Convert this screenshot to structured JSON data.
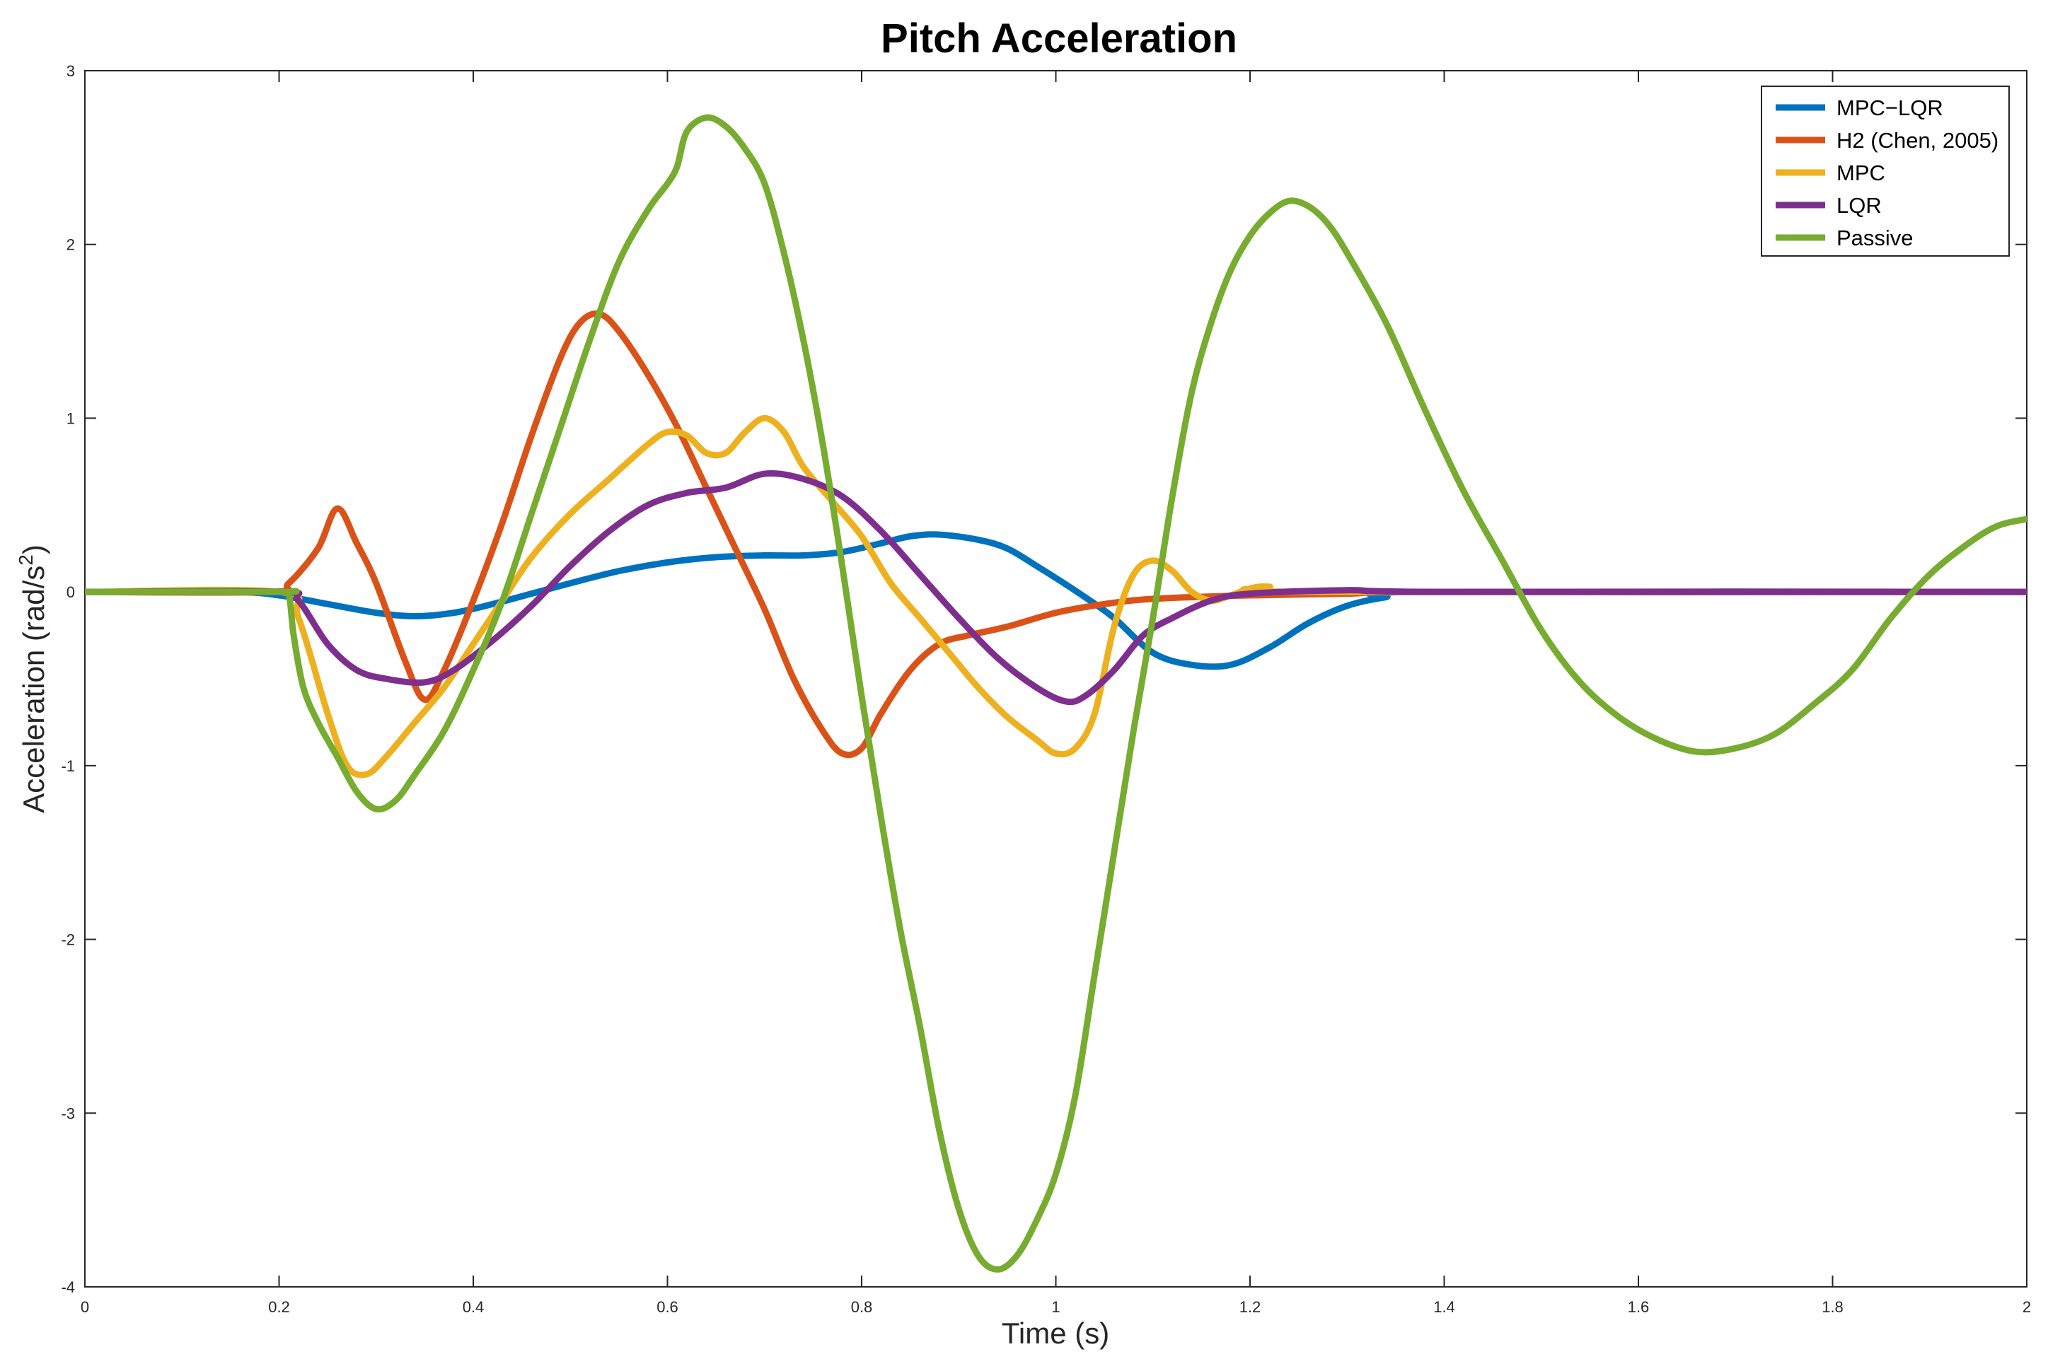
{
  "chart_data": {
    "type": "line",
    "title": "Pitch Acceleration",
    "xlabel": "Time (s)",
    "ylabel_main": "Acceleration (rad/s",
    "ylabel_sup": "2",
    "ylabel_close": ")",
    "xlim": [
      0,
      2
    ],
    "ylim": [
      -4,
      3
    ],
    "xticks": [
      0,
      0.2,
      0.4,
      0.6,
      0.8,
      1,
      1.2,
      1.4,
      1.6,
      1.8,
      2
    ],
    "xtick_labels": [
      "0",
      "0.2",
      "0.4",
      "0.6",
      "0.8",
      "1",
      "1.2",
      "1.4",
      "1.6",
      "1.8",
      "2"
    ],
    "yticks": [
      -4,
      -3,
      -2,
      -1,
      0,
      1,
      2,
      3
    ],
    "ytick_labels": [
      "-4",
      "-3",
      "-2",
      "-1",
      "0",
      "1",
      "2",
      "3"
    ],
    "grid": false,
    "legend_position": "top-right",
    "series": [
      {
        "name": "MPC−LQR",
        "color": "#0072BD",
        "points": [
          [
            0,
            0
          ],
          [
            0.15,
            0
          ],
          [
            0.2,
            -0.02
          ],
          [
            0.25,
            -0.07
          ],
          [
            0.3,
            -0.12
          ],
          [
            0.34,
            -0.14
          ],
          [
            0.38,
            -0.12
          ],
          [
            0.42,
            -0.07
          ],
          [
            0.46,
            -0.01
          ],
          [
            0.5,
            0.05
          ],
          [
            0.55,
            0.12
          ],
          [
            0.6,
            0.17
          ],
          [
            0.65,
            0.2
          ],
          [
            0.7,
            0.21
          ],
          [
            0.74,
            0.21
          ],
          [
            0.78,
            0.23
          ],
          [
            0.82,
            0.28
          ],
          [
            0.85,
            0.32
          ],
          [
            0.88,
            0.33
          ],
          [
            0.92,
            0.3
          ],
          [
            0.95,
            0.25
          ],
          [
            0.98,
            0.15
          ],
          [
            1.0,
            0.08
          ],
          [
            1.03,
            -0.03
          ],
          [
            1.06,
            -0.15
          ],
          [
            1.1,
            -0.35
          ],
          [
            1.14,
            -0.42
          ],
          [
            1.18,
            -0.42
          ],
          [
            1.22,
            -0.32
          ],
          [
            1.26,
            -0.18
          ],
          [
            1.3,
            -0.08
          ],
          [
            1.34,
            -0.03
          ],
          [
            1.38,
            0
          ],
          [
            2,
            0
          ]
        ]
      },
      {
        "name": "H2 (Chen, 2005)",
        "color": "#D95319",
        "points": [
          [
            0,
            0
          ],
          [
            0.19,
            0
          ],
          [
            0.21,
            0.05
          ],
          [
            0.24,
            0.25
          ],
          [
            0.26,
            0.48
          ],
          [
            0.28,
            0.28
          ],
          [
            0.3,
            0.05
          ],
          [
            0.33,
            -0.4
          ],
          [
            0.35,
            -0.62
          ],
          [
            0.37,
            -0.45
          ],
          [
            0.4,
            -0.05
          ],
          [
            0.43,
            0.4
          ],
          [
            0.46,
            0.9
          ],
          [
            0.49,
            1.35
          ],
          [
            0.51,
            1.55
          ],
          [
            0.53,
            1.6
          ],
          [
            0.55,
            1.5
          ],
          [
            0.58,
            1.25
          ],
          [
            0.61,
            0.95
          ],
          [
            0.64,
            0.6
          ],
          [
            0.67,
            0.25
          ],
          [
            0.7,
            -0.1
          ],
          [
            0.73,
            -0.5
          ],
          [
            0.76,
            -0.8
          ],
          [
            0.78,
            -0.93
          ],
          [
            0.8,
            -0.9
          ],
          [
            0.82,
            -0.7
          ],
          [
            0.85,
            -0.45
          ],
          [
            0.88,
            -0.3
          ],
          [
            0.91,
            -0.25
          ],
          [
            0.95,
            -0.2
          ],
          [
            1.0,
            -0.12
          ],
          [
            1.05,
            -0.07
          ],
          [
            1.1,
            -0.04
          ],
          [
            1.2,
            -0.02
          ],
          [
            1.3,
            -0.01
          ],
          [
            1.4,
            0
          ],
          [
            2,
            0
          ]
        ]
      },
      {
        "name": "MPC",
        "color": "#EDB120",
        "points": [
          [
            0,
            0
          ],
          [
            0.2,
            0
          ],
          [
            0.22,
            -0.15
          ],
          [
            0.25,
            -0.7
          ],
          [
            0.27,
            -1.0
          ],
          [
            0.29,
            -1.05
          ],
          [
            0.31,
            -0.95
          ],
          [
            0.34,
            -0.75
          ],
          [
            0.37,
            -0.55
          ],
          [
            0.4,
            -0.3
          ],
          [
            0.43,
            -0.05
          ],
          [
            0.46,
            0.2
          ],
          [
            0.5,
            0.45
          ],
          [
            0.54,
            0.65
          ],
          [
            0.58,
            0.85
          ],
          [
            0.6,
            0.92
          ],
          [
            0.62,
            0.9
          ],
          [
            0.64,
            0.8
          ],
          [
            0.66,
            0.8
          ],
          [
            0.68,
            0.92
          ],
          [
            0.7,
            1.0
          ],
          [
            0.72,
            0.92
          ],
          [
            0.74,
            0.72
          ],
          [
            0.77,
            0.52
          ],
          [
            0.8,
            0.32
          ],
          [
            0.83,
            0.05
          ],
          [
            0.86,
            -0.15
          ],
          [
            0.89,
            -0.35
          ],
          [
            0.92,
            -0.55
          ],
          [
            0.95,
            -0.72
          ],
          [
            0.98,
            -0.85
          ],
          [
            1.0,
            -0.93
          ],
          [
            1.02,
            -0.9
          ],
          [
            1.04,
            -0.7
          ],
          [
            1.06,
            -0.2
          ],
          [
            1.08,
            0.1
          ],
          [
            1.1,
            0.18
          ],
          [
            1.12,
            0.12
          ],
          [
            1.14,
            0
          ],
          [
            1.16,
            -0.05
          ],
          [
            1.18,
            -0.02
          ],
          [
            1.2,
            0.02
          ],
          [
            1.22,
            0.03
          ],
          [
            1.26,
            0
          ],
          [
            2,
            0
          ]
        ]
      },
      {
        "name": "LQR",
        "color": "#7E2F8E",
        "points": [
          [
            0,
            0
          ],
          [
            0.2,
            0
          ],
          [
            0.22,
            -0.05
          ],
          [
            0.25,
            -0.3
          ],
          [
            0.28,
            -0.45
          ],
          [
            0.31,
            -0.5
          ],
          [
            0.35,
            -0.52
          ],
          [
            0.38,
            -0.45
          ],
          [
            0.42,
            -0.28
          ],
          [
            0.46,
            -0.08
          ],
          [
            0.5,
            0.15
          ],
          [
            0.54,
            0.35
          ],
          [
            0.58,
            0.5
          ],
          [
            0.62,
            0.57
          ],
          [
            0.66,
            0.6
          ],
          [
            0.7,
            0.68
          ],
          [
            0.74,
            0.65
          ],
          [
            0.78,
            0.55
          ],
          [
            0.82,
            0.35
          ],
          [
            0.86,
            0.1
          ],
          [
            0.9,
            -0.15
          ],
          [
            0.94,
            -0.38
          ],
          [
            0.98,
            -0.55
          ],
          [
            1.01,
            -0.63
          ],
          [
            1.03,
            -0.6
          ],
          [
            1.06,
            -0.45
          ],
          [
            1.09,
            -0.25
          ],
          [
            1.12,
            -0.15
          ],
          [
            1.16,
            -0.05
          ],
          [
            1.2,
            -0.01
          ],
          [
            1.3,
            0.01
          ],
          [
            1.4,
            0
          ],
          [
            2,
            0
          ]
        ]
      },
      {
        "name": "Passive",
        "color": "#77AC30",
        "points": [
          [
            0,
            0
          ],
          [
            0.2,
            0
          ],
          [
            0.21,
            -0.02
          ],
          [
            0.215,
            -0.25
          ],
          [
            0.225,
            -0.55
          ],
          [
            0.24,
            -0.75
          ],
          [
            0.26,
            -0.95
          ],
          [
            0.28,
            -1.15
          ],
          [
            0.3,
            -1.25
          ],
          [
            0.32,
            -1.2
          ],
          [
            0.34,
            -1.05
          ],
          [
            0.37,
            -0.8
          ],
          [
            0.4,
            -0.45
          ],
          [
            0.43,
            -0.05
          ],
          [
            0.46,
            0.45
          ],
          [
            0.49,
            0.95
          ],
          [
            0.52,
            1.45
          ],
          [
            0.55,
            1.9
          ],
          [
            0.58,
            2.2
          ],
          [
            0.6,
            2.35
          ],
          [
            0.61,
            2.45
          ],
          [
            0.62,
            2.65
          ],
          [
            0.64,
            2.73
          ],
          [
            0.66,
            2.68
          ],
          [
            0.68,
            2.55
          ],
          [
            0.7,
            2.35
          ],
          [
            0.72,
            1.95
          ],
          [
            0.74,
            1.45
          ],
          [
            0.76,
            0.85
          ],
          [
            0.78,
            0.15
          ],
          [
            0.8,
            -0.6
          ],
          [
            0.82,
            -1.3
          ],
          [
            0.84,
            -1.95
          ],
          [
            0.86,
            -2.5
          ],
          [
            0.88,
            -3.1
          ],
          [
            0.9,
            -3.55
          ],
          [
            0.92,
            -3.82
          ],
          [
            0.94,
            -3.9
          ],
          [
            0.96,
            -3.82
          ],
          [
            0.98,
            -3.62
          ],
          [
            1.0,
            -3.35
          ],
          [
            1.02,
            -2.9
          ],
          [
            1.04,
            -2.2
          ],
          [
            1.06,
            -1.5
          ],
          [
            1.08,
            -0.8
          ],
          [
            1.1,
            -0.15
          ],
          [
            1.12,
            0.55
          ],
          [
            1.14,
            1.15
          ],
          [
            1.16,
            1.55
          ],
          [
            1.18,
            1.85
          ],
          [
            1.2,
            2.05
          ],
          [
            1.22,
            2.18
          ],
          [
            1.24,
            2.25
          ],
          [
            1.26,
            2.22
          ],
          [
            1.28,
            2.12
          ],
          [
            1.3,
            1.95
          ],
          [
            1.34,
            1.55
          ],
          [
            1.38,
            1.05
          ],
          [
            1.42,
            0.58
          ],
          [
            1.46,
            0.18
          ],
          [
            1.5,
            -0.22
          ],
          [
            1.54,
            -0.52
          ],
          [
            1.58,
            -0.72
          ],
          [
            1.62,
            -0.85
          ],
          [
            1.66,
            -0.92
          ],
          [
            1.7,
            -0.9
          ],
          [
            1.74,
            -0.82
          ],
          [
            1.78,
            -0.65
          ],
          [
            1.82,
            -0.45
          ],
          [
            1.86,
            -0.15
          ],
          [
            1.9,
            0.1
          ],
          [
            1.94,
            0.28
          ],
          [
            1.97,
            0.38
          ],
          [
            2.0,
            0.42
          ]
        ]
      }
    ]
  }
}
